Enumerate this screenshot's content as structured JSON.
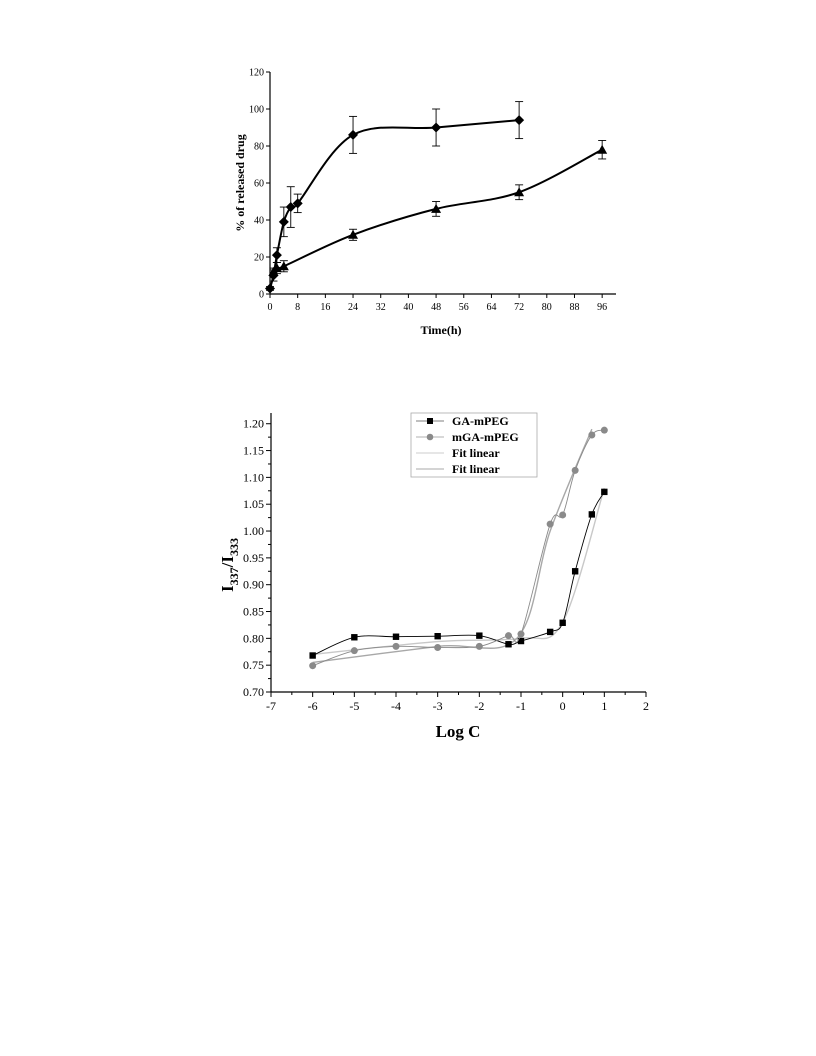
{
  "chart_data": [
    {
      "type": "line",
      "xlabel": "Time(h)",
      "ylabel": "% of released drug",
      "xlim": [
        0,
        100
      ],
      "ylim": [
        0,
        120
      ],
      "xticks": [
        "0",
        "8",
        "16",
        "24",
        "32",
        "40",
        "48",
        "56",
        "64",
        "72",
        "80",
        "88",
        "96"
      ],
      "yticks": [
        "0",
        "20",
        "40",
        "60",
        "80",
        "100",
        "120"
      ],
      "grid": false,
      "series": [
        {
          "marker": "diamond",
          "x": [
            0,
            1,
            2,
            4,
            6,
            8,
            24,
            48,
            72
          ],
          "y": [
            3,
            10,
            21,
            39,
            47,
            49,
            86,
            90,
            94
          ],
          "err": [
            1,
            3,
            4,
            8,
            11,
            5,
            10,
            10,
            10
          ]
        },
        {
          "marker": "triangle",
          "x": [
            1,
            2,
            4,
            24,
            48,
            72,
            96
          ],
          "y": [
            12,
            14,
            15,
            32,
            46,
            55,
            78
          ],
          "err": [
            2,
            3,
            3,
            3,
            4,
            4,
            5
          ]
        }
      ]
    },
    {
      "type": "scatter",
      "xlabel": "Log C",
      "ylabel_parts": {
        "main1": "I",
        "sub1": "337",
        "sep": "/I",
        "sub2": "333"
      },
      "xlim": [
        -7,
        2
      ],
      "ylim": [
        0.7,
        1.22
      ],
      "xticks": [
        "-7",
        "-6",
        "-5",
        "-4",
        "-3",
        "-2",
        "-1",
        "0",
        "1",
        "2"
      ],
      "yticks": [
        "0.70",
        "0.75",
        "0.80",
        "0.85",
        "0.90",
        "0.95",
        "1.00",
        "1.05",
        "1.10",
        "1.15",
        "1.20"
      ],
      "grid": false,
      "legend_position": "top-right",
      "legend": [
        "GA-mPEG",
        "mGA-mPEG",
        "Fit linear",
        "Fit linear"
      ],
      "series": [
        {
          "name": "GA-mPEG",
          "marker": "square",
          "color": "#000000",
          "x": [
            -6,
            -5,
            -4,
            -3,
            -2,
            -1.3,
            -1,
            -0.3,
            0,
            0.3,
            0.7,
            1
          ],
          "y": [
            0.768,
            0.802,
            0.803,
            0.804,
            0.805,
            0.789,
            0.795,
            0.812,
            0.829,
            0.925,
            1.031,
            1.073
          ]
        },
        {
          "name": "mGA-mPEG",
          "marker": "circle",
          "color": "#8a8a8a",
          "x": [
            -6,
            -5,
            -4,
            -3,
            -2,
            -1.3,
            -1,
            -0.3,
            0,
            0.3,
            0.7,
            1
          ],
          "y": [
            0.749,
            0.777,
            0.785,
            0.783,
            0.785,
            0.805,
            0.808,
            1.013,
            1.03,
            1.113,
            1.179,
            1.188
          ]
        },
        {
          "name": "Fit linear",
          "color": "#c8c8c8",
          "x": [
            -6,
            -3,
            -1,
            0,
            1
          ],
          "y": [
            0.77,
            0.794,
            0.8,
            0.83,
            1.08
          ]
        },
        {
          "name": "Fit linear",
          "color": "#a8a8a8",
          "x": [
            -6,
            -3,
            -1.1,
            -0.3,
            0.7
          ],
          "y": [
            0.755,
            0.785,
            0.8,
            1.0,
            1.19
          ]
        }
      ],
      "marker_colors": {
        "gray": "#8a8a8a",
        "black": "#000000"
      }
    }
  ]
}
